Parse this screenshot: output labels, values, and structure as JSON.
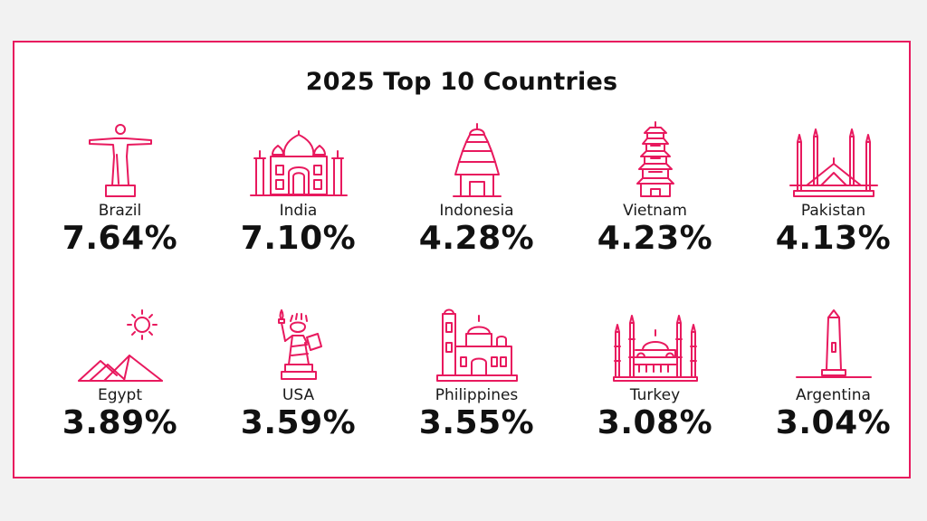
{
  "title": "2025 Top 10 Countries",
  "accent_color": "#e8195e",
  "countries": [
    {
      "name": "Brazil",
      "percent": "7.64%",
      "icon": "christ-the-redeemer-icon"
    },
    {
      "name": "India",
      "percent": "7.10%",
      "icon": "taj-mahal-icon"
    },
    {
      "name": "Indonesia",
      "percent": "4.28%",
      "icon": "balinese-temple-icon"
    },
    {
      "name": "Vietnam",
      "percent": "4.23%",
      "icon": "pagoda-icon"
    },
    {
      "name": "Pakistan",
      "percent": "4.13%",
      "icon": "faisal-mosque-icon"
    },
    {
      "name": "Egypt",
      "percent": "3.89%",
      "icon": "pyramids-icon"
    },
    {
      "name": "USA",
      "percent": "3.59%",
      "icon": "statue-of-liberty-icon"
    },
    {
      "name": "Philippines",
      "percent": "3.55%",
      "icon": "cathedral-icon"
    },
    {
      "name": "Turkey",
      "percent": "3.08%",
      "icon": "blue-mosque-icon"
    },
    {
      "name": "Argentina",
      "percent": "3.04%",
      "icon": "obelisk-icon"
    }
  ]
}
